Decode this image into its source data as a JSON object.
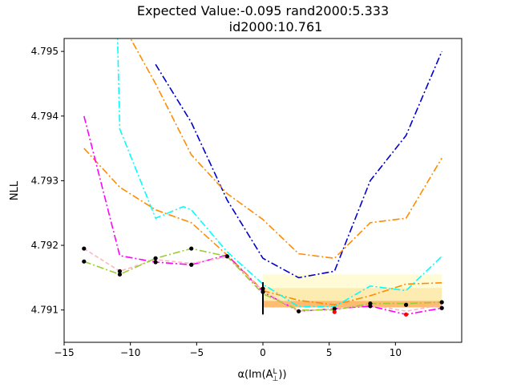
{
  "chart_data": {
    "type": "line",
    "title_line1": "Expected Value:-0.095       rand2000:5.333",
    "title_line2": "id2000:10.761",
    "xlabel": "α(Im(A",
    "xlabel_sub": "⊥",
    "xlabel_sup": "L",
    "xlabel_close": "))",
    "ylabel": "NLL",
    "xlim": [
      -15,
      15
    ],
    "ylim": [
      4.7905,
      4.7952
    ],
    "xticks": [
      -15,
      -10,
      -5,
      0,
      5,
      10
    ],
    "yticks": [
      4.791,
      4.792,
      4.793,
      4.794,
      4.795
    ],
    "xtick_labels": [
      "−15",
      "−10",
      "−5",
      "0",
      "5",
      "10"
    ],
    "ytick_labels": [
      "4.791",
      "4.792",
      "4.793",
      "4.794",
      "4.795"
    ],
    "bands": [
      {
        "x": [
          0,
          13.5
        ],
        "y": [
          4.79104,
          4.79155
        ],
        "color": "#fffacd",
        "opacity": 0.8
      },
      {
        "x": [
          0,
          13.5
        ],
        "y": [
          4.79104,
          4.79134
        ],
        "color": "#fde9a8",
        "opacity": 0.8
      },
      {
        "x": [
          0,
          13.5
        ],
        "y": [
          4.79104,
          4.79114
        ],
        "color": "#ffb060",
        "opacity": 0.8
      }
    ],
    "error_bar": {
      "x": 0,
      "y_low": 4.79093,
      "y_high": 4.79143,
      "color": "#000000"
    },
    "series": [
      {
        "color": "#0000cd",
        "dash": "9,3,2,3",
        "x": [
          -8.1,
          -5.4,
          -2.7,
          0,
          2.7,
          5.4,
          8.1,
          10.8,
          13.5
        ],
        "y": [
          4.7948,
          4.7939,
          4.7927,
          4.7918,
          4.7915,
          4.7916,
          4.793,
          4.7937,
          4.795
        ]
      },
      {
        "color": "#ff8c00",
        "dash": "9,3,2,3",
        "x": [
          -13.5,
          -10.8,
          -8.1,
          -5.4,
          -2.7,
          0,
          2.7,
          5.4,
          8.1,
          10.8,
          13.5
        ],
        "y": [
          4.7935,
          4.7929,
          4.79255,
          4.79235,
          4.79185,
          4.7913,
          4.79115,
          4.79108,
          4.79122,
          4.7914,
          4.79142
        ]
      },
      {
        "color": "#ff8c00",
        "dash": "9,3,2,3",
        "x": [
          -10.8,
          -8.1,
          -5.4,
          -2.7,
          0,
          2.7,
          5.4,
          8.1,
          10.8,
          13.5
        ],
        "y": [
          4.7955,
          4.7945,
          4.7934,
          4.7928,
          4.7924,
          4.79187,
          4.7918,
          4.79235,
          4.79242,
          4.79335
        ]
      },
      {
        "color": "#00ffff",
        "dash": "9,3,2,3",
        "x": [
          -11.0,
          -10.8,
          -8.1,
          -6.0,
          -5.4,
          -2.7,
          0,
          2.7,
          5.4,
          8.1,
          10.8,
          13.5
        ],
        "y": [
          4.7955,
          4.7938,
          4.79242,
          4.7926,
          4.79255,
          4.7919,
          4.7914,
          4.79105,
          4.79105,
          4.79137,
          4.7913,
          4.79183
        ]
      },
      {
        "color": "#ff00ff",
        "dash": "9,3,2,3",
        "x": [
          -13.5,
          -10.8,
          -8.1,
          -5.4,
          -2.7,
          0,
          2.7,
          5.4,
          8.1,
          10.8,
          13.5
        ],
        "y": [
          4.794,
          4.79184,
          4.79174,
          4.7917,
          4.79185,
          4.79128,
          4.79098,
          4.79102,
          4.79106,
          4.79093,
          4.79103
        ]
      },
      {
        "color": "#ffb6c1",
        "dash": "5,3",
        "x": [
          -13.5,
          -10.8,
          -8.1,
          -5.4,
          -2.7,
          0,
          2.7,
          5.4,
          8.1,
          10.8,
          13.5
        ],
        "y": [
          4.79195,
          4.7916,
          4.79178,
          4.79172,
          4.79182,
          4.7913,
          4.79098,
          4.79102,
          4.79108,
          4.79098,
          4.79108
        ]
      },
      {
        "color": "#9acd32",
        "dash": "9,3,2,3",
        "x": [
          -13.5,
          -10.8,
          -8.1,
          -5.4,
          -2.7,
          0,
          2.7,
          5.4,
          8.1,
          10.8,
          13.5
        ],
        "y": [
          4.79175,
          4.79155,
          4.7918,
          4.79195,
          4.79183,
          4.79125,
          4.791,
          4.791,
          4.7911,
          4.7911,
          4.79112
        ]
      }
    ],
    "points": [
      {
        "x": -13.5,
        "y": 4.79195,
        "color": "#000000"
      },
      {
        "x": -13.5,
        "y": 4.79175,
        "color": "#000000"
      },
      {
        "x": -10.8,
        "y": 4.7916,
        "color": "#000000"
      },
      {
        "x": -10.8,
        "y": 4.79155,
        "color": "#000000"
      },
      {
        "x": -8.1,
        "y": 4.7918,
        "color": "#000000"
      },
      {
        "x": -8.1,
        "y": 4.79174,
        "color": "#000000"
      },
      {
        "x": -5.4,
        "y": 4.79195,
        "color": "#000000"
      },
      {
        "x": -5.4,
        "y": 4.7917,
        "color": "#000000"
      },
      {
        "x": -2.7,
        "y": 4.79183,
        "color": "#000000"
      },
      {
        "x": 0,
        "y": 4.79133,
        "color": "#000000"
      },
      {
        "x": 0,
        "y": 4.79128,
        "color": "#000000"
      },
      {
        "x": 2.7,
        "y": 4.79098,
        "color": "#000000"
      },
      {
        "x": 5.4,
        "y": 4.79102,
        "color": "#000000"
      },
      {
        "x": 5.4,
        "y": 4.79097,
        "color": "#ff0000"
      },
      {
        "x": 8.1,
        "y": 4.7911,
        "color": "#000000"
      },
      {
        "x": 8.1,
        "y": 4.79106,
        "color": "#000000"
      },
      {
        "x": 10.8,
        "y": 4.79108,
        "color": "#000000"
      },
      {
        "x": 10.8,
        "y": 4.79093,
        "color": "#ff0000"
      },
      {
        "x": 13.5,
        "y": 4.79112,
        "color": "#000000"
      },
      {
        "x": 13.5,
        "y": 4.79103,
        "color": "#000000"
      }
    ]
  }
}
